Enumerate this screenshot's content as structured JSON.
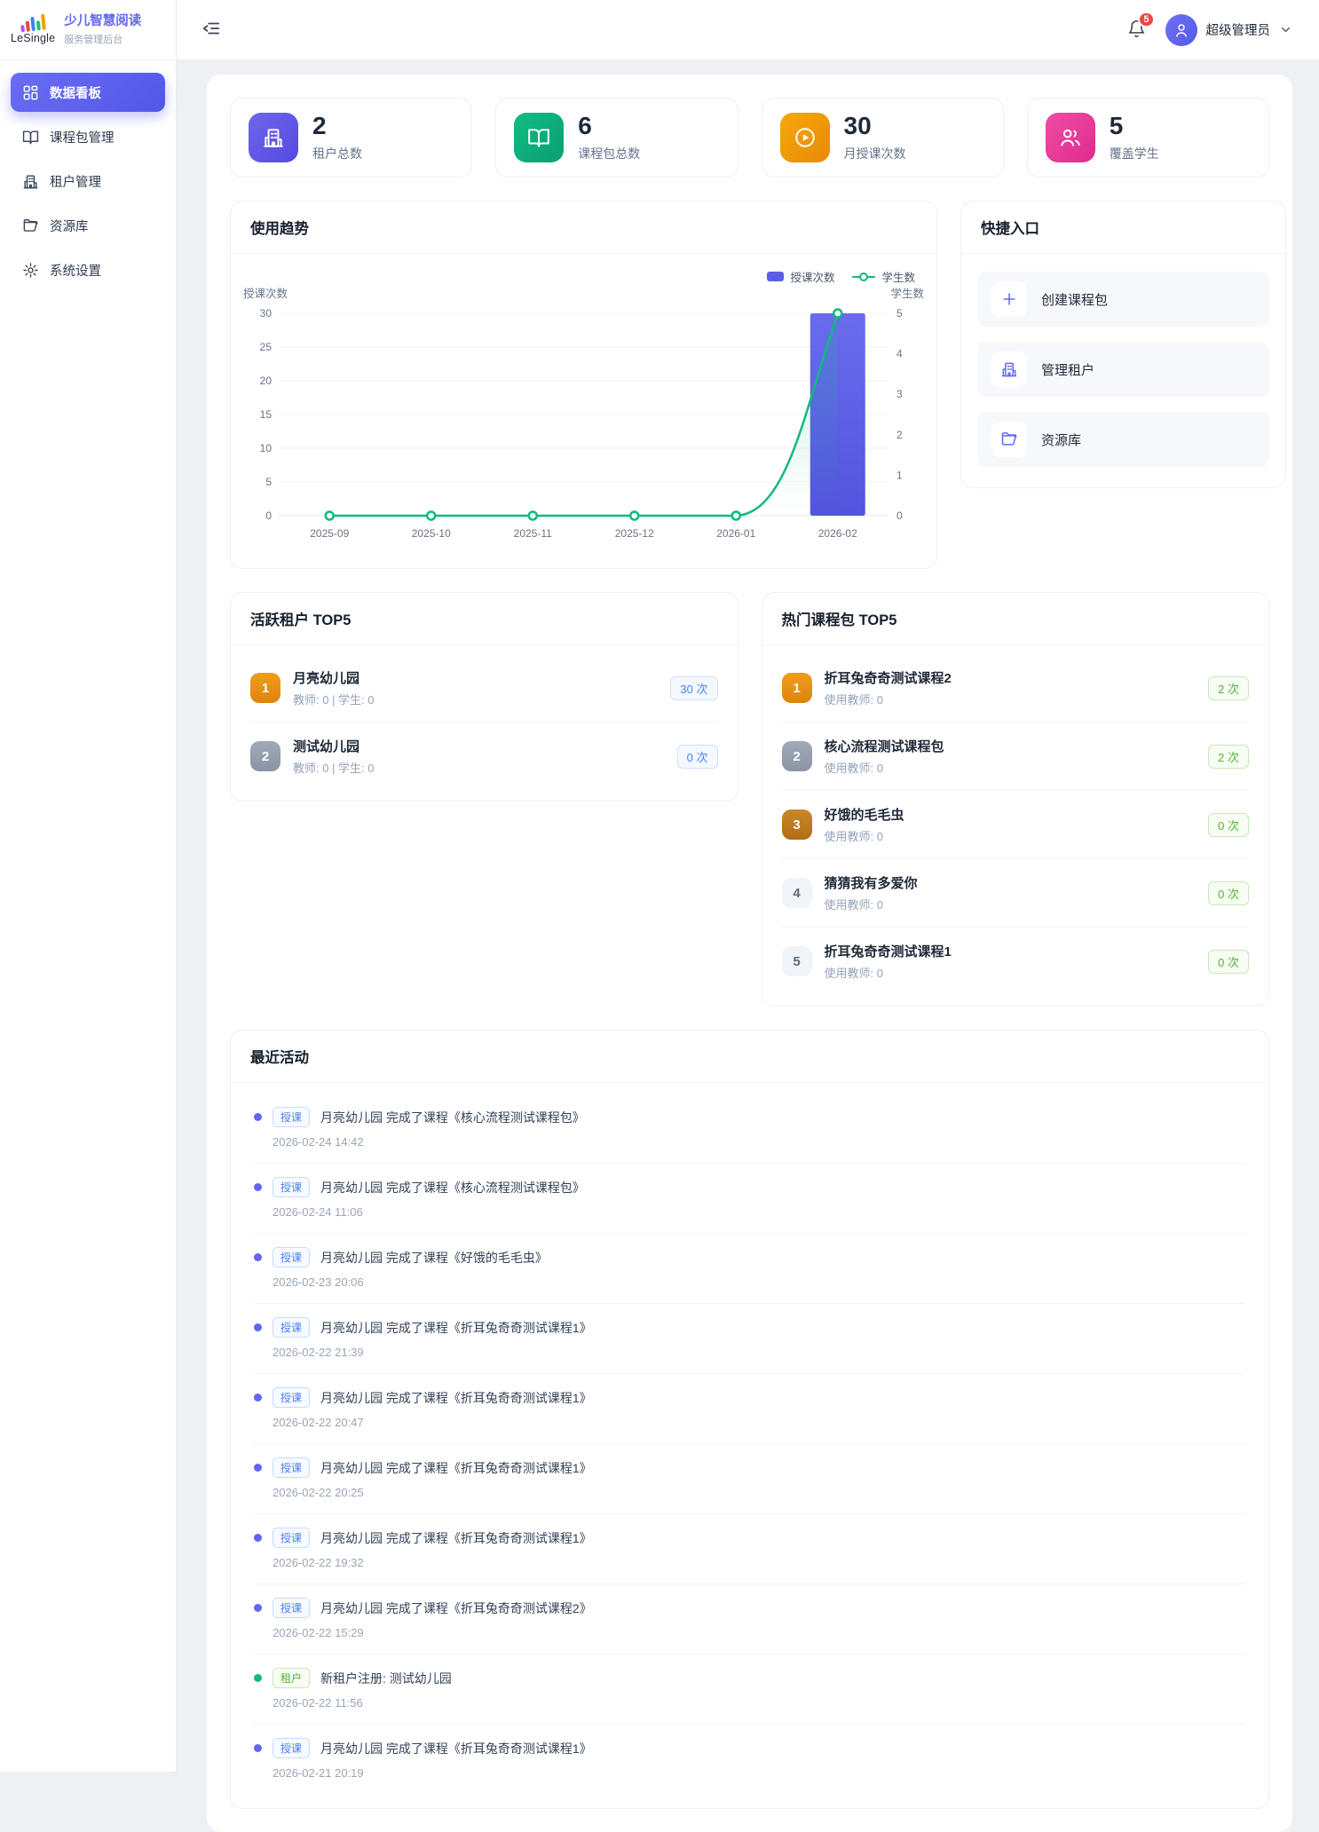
{
  "app": {
    "logo_text": "LeSingle",
    "title": "少儿智慧阅读",
    "subtitle": "服务管理后台"
  },
  "topbar": {
    "notification_count": "5",
    "user_name": "超级管理员"
  },
  "sidebar": {
    "items": [
      {
        "id": "dashboard",
        "label": "数据看板",
        "icon": "dashboard-icon",
        "active": true
      },
      {
        "id": "packages",
        "label": "课程包管理",
        "icon": "book-icon",
        "active": false
      },
      {
        "id": "tenants",
        "label": "租户管理",
        "icon": "building-icon",
        "active": false
      },
      {
        "id": "resources",
        "label": "资源库",
        "icon": "folder-icon",
        "active": false
      },
      {
        "id": "settings",
        "label": "系统设置",
        "icon": "gear-icon",
        "active": false
      }
    ]
  },
  "stats": [
    {
      "id": "tenants",
      "value": "2",
      "label": "租户总数",
      "icon": "building-icon",
      "color": "#6366f1"
    },
    {
      "id": "packages",
      "value": "6",
      "label": "课程包总数",
      "icon": "book-icon",
      "color": "#10b981"
    },
    {
      "id": "sessions",
      "value": "30",
      "label": "月授课次数",
      "icon": "play-icon",
      "color": "#f59e0b"
    },
    {
      "id": "students",
      "value": "5",
      "label": "覆盖学生",
      "icon": "users-icon",
      "color": "#ec4899"
    }
  ],
  "trend": {
    "title": "使用趋势"
  },
  "chart_data": {
    "type": "bar",
    "categories": [
      "2025-09",
      "2025-10",
      "2025-11",
      "2025-12",
      "2026-01",
      "2026-02"
    ],
    "series": [
      {
        "name": "授课次数",
        "type": "bar",
        "axis": "left",
        "values": [
          0,
          0,
          0,
          0,
          0,
          30
        ],
        "color": "#5b5ce2"
      },
      {
        "name": "学生数",
        "type": "line",
        "axis": "right",
        "values": [
          0,
          0,
          0,
          0,
          0,
          5
        ],
        "color": "#10b981"
      }
    ],
    "left_axis": {
      "label": "授课次数",
      "ticks": [
        0,
        5,
        10,
        15,
        20,
        25,
        30
      ],
      "max": 30
    },
    "right_axis": {
      "label": "学生数",
      "ticks": [
        0,
        1,
        2,
        3,
        4,
        5
      ],
      "max": 5
    },
    "grid": true,
    "legend_position": "top-right"
  },
  "quick_entry": {
    "title": "快捷入口",
    "items": [
      {
        "id": "create-package",
        "label": "创建课程包",
        "icon": "plus-icon"
      },
      {
        "id": "manage-tenants",
        "label": "管理租户",
        "icon": "building-icon"
      },
      {
        "id": "resources",
        "label": "资源库",
        "icon": "folder-icon"
      }
    ]
  },
  "active_tenants": {
    "title": "活跃租户 TOP5",
    "badge_color": "blue",
    "items": [
      {
        "rank": "1",
        "name": "月亮幼儿园",
        "meta": "教师: 0 | 学生: 0",
        "badge": "30 次"
      },
      {
        "rank": "2",
        "name": "测试幼儿园",
        "meta": "教师: 0 | 学生: 0",
        "badge": "0 次"
      }
    ]
  },
  "hot_packages": {
    "title": "热门课程包 TOP5",
    "badge_color": "green",
    "items": [
      {
        "rank": "1",
        "name": "折耳兔奇奇测试课程2",
        "meta": "使用教师: 0",
        "badge": "2 次"
      },
      {
        "rank": "2",
        "name": "核心流程测试课程包",
        "meta": "使用教师: 0",
        "badge": "2 次"
      },
      {
        "rank": "3",
        "name": "好饿的毛毛虫",
        "meta": "使用教师: 0",
        "badge": "0 次"
      },
      {
        "rank": "4",
        "name": "猜猜我有多爱你",
        "meta": "使用教师: 0",
        "badge": "0 次"
      },
      {
        "rank": "5",
        "name": "折耳兔奇奇测试课程1",
        "meta": "使用教师: 0",
        "badge": "0 次"
      }
    ]
  },
  "recent": {
    "title": "最近活动",
    "items": [
      {
        "type": "teach",
        "tag": "授课",
        "text": "月亮幼儿园 完成了课程《核心流程测试课程包》",
        "time": "2026-02-24 14:42"
      },
      {
        "type": "teach",
        "tag": "授课",
        "text": "月亮幼儿园 完成了课程《核心流程测试课程包》",
        "time": "2026-02-24 11:06"
      },
      {
        "type": "teach",
        "tag": "授课",
        "text": "月亮幼儿园 完成了课程《好饿的毛毛虫》",
        "time": "2026-02-23 20:06"
      },
      {
        "type": "teach",
        "tag": "授课",
        "text": "月亮幼儿园 完成了课程《折耳兔奇奇测试课程1》",
        "time": "2026-02-22 21:39"
      },
      {
        "type": "teach",
        "tag": "授课",
        "text": "月亮幼儿园 完成了课程《折耳兔奇奇测试课程1》",
        "time": "2026-02-22 20:47"
      },
      {
        "type": "teach",
        "tag": "授课",
        "text": "月亮幼儿园 完成了课程《折耳兔奇奇测试课程1》",
        "time": "2026-02-22 20:25"
      },
      {
        "type": "teach",
        "tag": "授课",
        "text": "月亮幼儿园 完成了课程《折耳兔奇奇测试课程1》",
        "time": "2026-02-22 19:32"
      },
      {
        "type": "teach",
        "tag": "授课",
        "text": "月亮幼儿园 完成了课程《折耳兔奇奇测试课程2》",
        "time": "2026-02-22 15:29"
      },
      {
        "type": "tenant",
        "tag": "租户",
        "text": "新租户注册: 测试幼儿园",
        "time": "2026-02-22 11:56"
      },
      {
        "type": "teach",
        "tag": "授课",
        "text": "月亮幼儿园 完成了课程《折耳兔奇奇测试课程1》",
        "time": "2026-02-21 20:19"
      }
    ]
  }
}
